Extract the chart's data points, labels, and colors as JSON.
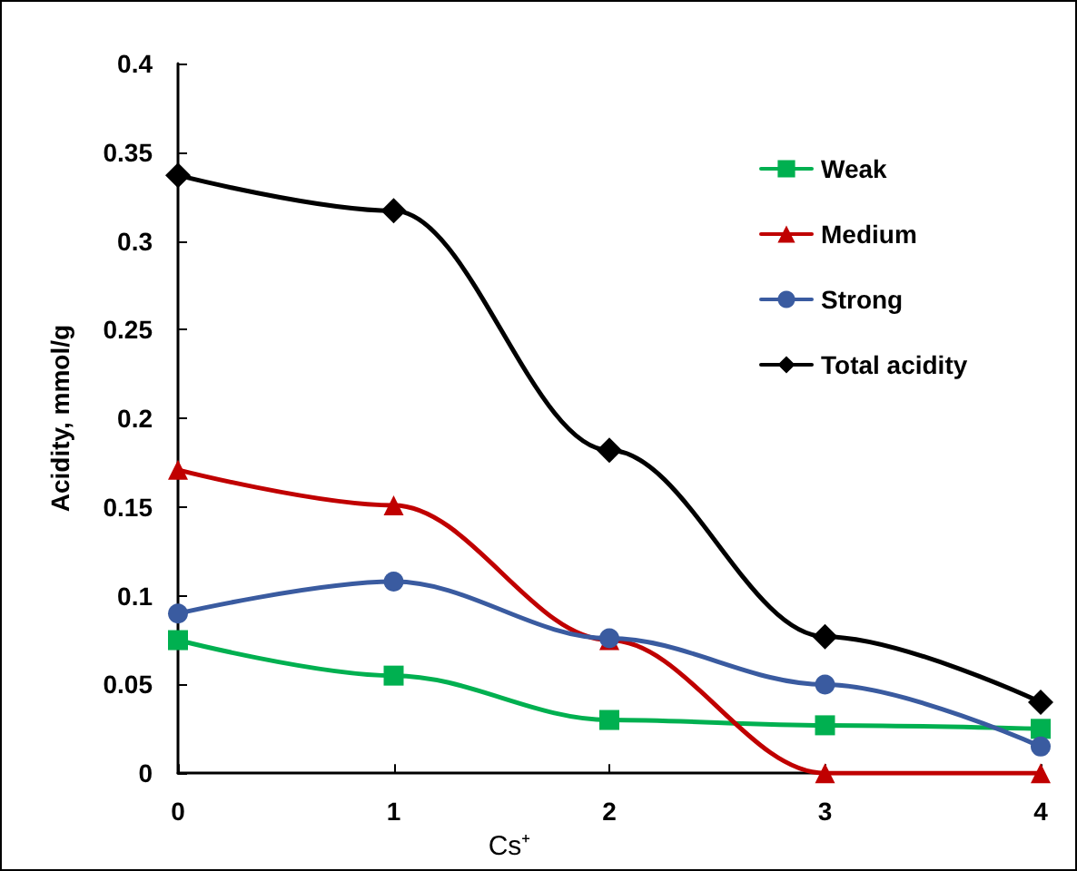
{
  "chart_data": {
    "type": "line",
    "xlabel": "Cs⁺",
    "ylabel": "Acidity, mmol/g",
    "x": [
      0,
      1,
      2,
      3,
      4
    ],
    "xlim": [
      0,
      4
    ],
    "xticks": [
      0,
      1,
      2,
      3,
      4
    ],
    "ylim": [
      0,
      0.4
    ],
    "yticks": [
      0,
      0.05,
      0.1,
      0.15,
      0.2,
      0.25,
      0.3,
      0.35,
      0.4
    ],
    "grid": false,
    "legend": "top right",
    "series": [
      {
        "name": "Weak",
        "color": "#00b050",
        "marker": "square",
        "values": [
          0.075,
          0.055,
          0.03,
          0.027,
          0.025
        ]
      },
      {
        "name": "Medium",
        "color": "#c00000",
        "marker": "triangle",
        "values": [
          0.171,
          0.151,
          0.075,
          0,
          0
        ]
      },
      {
        "name": "Strong",
        "color": "#3a5ba0",
        "marker": "circle",
        "values": [
          0.09,
          0.108,
          0.076,
          0.05,
          0.015
        ]
      },
      {
        "name": "Total acidity",
        "color": "#000000",
        "marker": "diamond",
        "values": [
          0.337,
          0.317,
          0.182,
          0.077,
          0.04
        ]
      }
    ]
  }
}
